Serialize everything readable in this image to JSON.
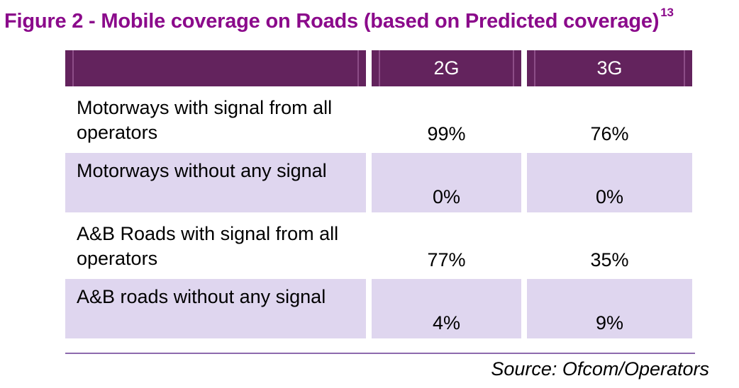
{
  "figure": {
    "title": "Figure 2 - Mobile coverage on Roads (based on Predicted coverage)",
    "footnote": "13",
    "source": "Source: Ofcom/Operators"
  },
  "table": {
    "headers": [
      "",
      "2G",
      "3G"
    ],
    "rows": [
      {
        "label": "Motorways with signal from all operators",
        "g2": "99%",
        "g3": "76%"
      },
      {
        "label": "Motorways without any signal",
        "g2": "0%",
        "g3": "0%"
      },
      {
        "label": "A&B Roads with signal from all operators",
        "g2": "77%",
        "g3": "35%"
      },
      {
        "label": "A&B roads without any signal",
        "g2": "4%",
        "g3": "9%"
      }
    ]
  },
  "colors": {
    "title": "#8b0a8b",
    "header_bg": "#63235d",
    "row_shade": "#dfd6ef",
    "rule": "#8d6aae"
  }
}
